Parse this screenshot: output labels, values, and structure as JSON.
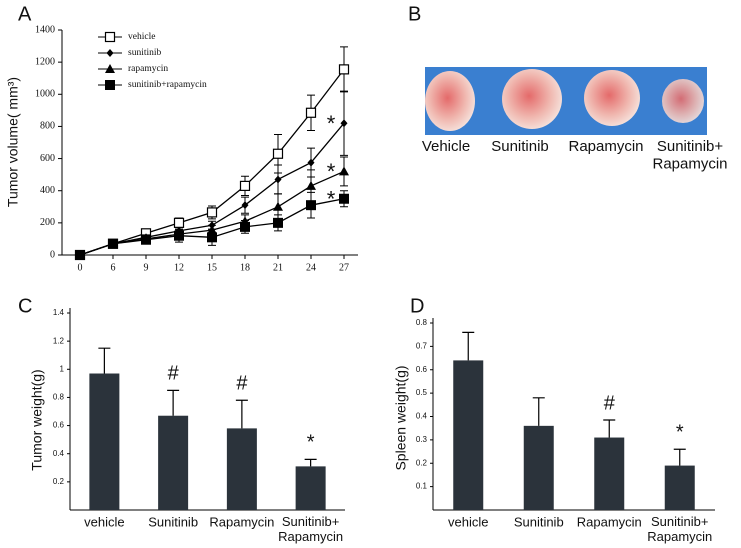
{
  "chart_data": [
    {
      "type": "line",
      "panel_label": "A",
      "ylabel": "Tumor volume( mm³)",
      "categories": [
        "0",
        "6",
        "9",
        "12",
        "15",
        "18",
        "21",
        "24",
        "27"
      ],
      "ylim": [
        0,
        1400
      ],
      "yticks": [
        0,
        200,
        400,
        600,
        800,
        1000,
        1200,
        1400
      ],
      "legend": "upper left",
      "series": [
        {
          "name": "vehicle",
          "color": "#000000",
          "marker": "open-square",
          "values": [
            0,
            70,
            135,
            200,
            265,
            430,
            630,
            885,
            1155
          ],
          "errors": [
            0,
            10,
            15,
            30,
            40,
            60,
            120,
            110,
            140
          ]
        },
        {
          "name": "sunitinib",
          "color": "#000000",
          "marker": "diamond",
          "values": [
            0,
            70,
            110,
            150,
            185,
            310,
            470,
            575,
            820
          ],
          "errors": [
            0,
            10,
            15,
            20,
            25,
            50,
            90,
            90,
            200
          ],
          "annotation": "*"
        },
        {
          "name": "rapamycin",
          "color": "#000000",
          "marker": "triangle",
          "values": [
            0,
            70,
            100,
            130,
            155,
            210,
            300,
            430,
            520
          ],
          "errors": [
            0,
            10,
            15,
            25,
            30,
            40,
            80,
            100,
            90
          ],
          "annotation": "*"
        },
        {
          "name": "sunitinib+rapamycin",
          "color": "#000000",
          "marker": "square",
          "values": [
            0,
            70,
            95,
            120,
            110,
            175,
            200,
            310,
            350
          ],
          "errors": [
            0,
            10,
            20,
            40,
            50,
            40,
            50,
            80,
            50
          ],
          "annotation": "*"
        }
      ]
    },
    {
      "type": "bar",
      "panel_label": "C",
      "ylabel": "Tumor weight(g)",
      "categories": [
        "vehicle",
        "Sunitinib",
        "Rapamycin",
        "Sunitinib+\nRapamycin"
      ],
      "values": [
        0.97,
        0.67,
        0.58,
        0.31
      ],
      "errors": [
        0.18,
        0.18,
        0.2,
        0.05
      ],
      "annotations": [
        null,
        "#",
        "#",
        "*"
      ],
      "color": "#2b333b",
      "ylim": [
        0,
        1.4
      ],
      "yticks": [
        0.2,
        0.4,
        0.6,
        0.8,
        1,
        1.2,
        1.4
      ]
    },
    {
      "type": "bar",
      "panel_label": "D",
      "ylabel": "Spleen weight(g)",
      "categories": [
        "vehicle",
        "Sunitinib",
        "Rapamycin",
        "Sunitinib+\nRapamycin"
      ],
      "values": [
        0.64,
        0.36,
        0.31,
        0.19
      ],
      "errors": [
        0.12,
        0.12,
        0.075,
        0.07
      ],
      "annotations": [
        null,
        null,
        "#",
        "*"
      ],
      "color": "#2b333b",
      "ylim": [
        0,
        0.8
      ],
      "yticks": [
        0.1,
        0.2,
        0.3,
        0.4,
        0.5,
        0.6,
        0.7,
        0.8
      ]
    }
  ],
  "photo": {
    "panel_label": "B",
    "labels": [
      "Vehicle",
      "Sunitinib",
      "Rapamycin",
      "Sunitinib+\nRapamycin"
    ]
  }
}
